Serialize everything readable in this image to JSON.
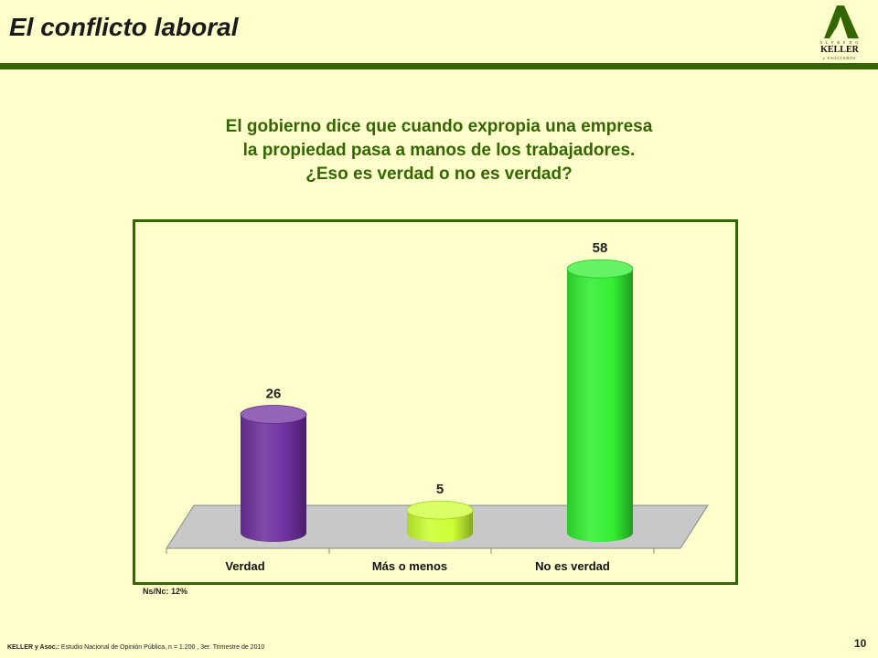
{
  "header": {
    "title": "El conflicto laboral"
  },
  "logo": {
    "top": "A L F R E D O",
    "main": "KELLER",
    "bottom": "y ASOCIADOS"
  },
  "question": {
    "lines": [
      "El gobierno dice que cuando expropia una empresa",
      "la propiedad pasa a manos de los trabajadores.",
      "¿Eso es verdad o no es verdad?"
    ]
  },
  "chart_data": {
    "type": "bar",
    "categories": [
      "Verdad",
      "Más o menos",
      "No es verdad"
    ],
    "values": [
      26,
      5,
      58
    ],
    "colors": [
      "#7030A0",
      "#CCFF33",
      "#33EE33"
    ],
    "title": "",
    "xlabel": "",
    "ylabel": "",
    "grid": false,
    "data_labels": true,
    "ylim": [
      0,
      60
    ]
  },
  "footnote": "Ns/Nc: 12%",
  "source": {
    "bold": "KELLER y Asoc.:",
    "text": " Estudio Nacional de Opinión Pública, n = 1.200 , 3er. Trimestre de 2010"
  },
  "page_number": "10"
}
